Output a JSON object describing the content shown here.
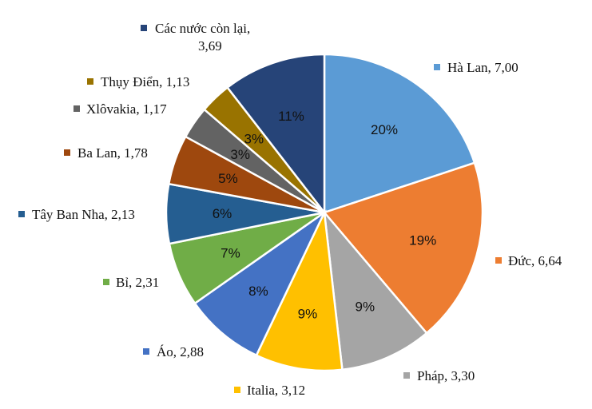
{
  "chart_data": {
    "type": "pie",
    "title": "",
    "slices": [
      {
        "name": "Hà Lan",
        "value_label": "7,00",
        "value": 7.0,
        "percent_label": "20%",
        "color": "#5B9BD5"
      },
      {
        "name": "Đức",
        "value_label": "6,64",
        "value": 6.64,
        "percent_label": "19%",
        "color": "#ED7D31"
      },
      {
        "name": "Pháp",
        "value_label": "3,30",
        "value": 3.3,
        "percent_label": "9%",
        "color": "#A5A5A5"
      },
      {
        "name": "Italia",
        "value_label": "3,12",
        "value": 3.12,
        "percent_label": "9%",
        "color": "#FFC000"
      },
      {
        "name": "Áo",
        "value_label": "2,88",
        "value": 2.88,
        "percent_label": "8%",
        "color": "#4472C4"
      },
      {
        "name": "Bỉ",
        "value_label": "2,31",
        "value": 2.31,
        "percent_label": "7%",
        "color": "#70AD47"
      },
      {
        "name": "Tây Ban Nha",
        "value_label": "2,13",
        "value": 2.13,
        "percent_label": "6%",
        "color": "#255E91"
      },
      {
        "name": "Ba Lan",
        "value_label": "1,78",
        "value": 1.78,
        "percent_label": "5%",
        "color": "#9E480E"
      },
      {
        "name": "Xlôvakia",
        "value_label": "1,17",
        "value": 1.17,
        "percent_label": "3%",
        "color": "#636363"
      },
      {
        "name": "Thụy Điển",
        "value_label": "1,13",
        "value": 1.13,
        "percent_label": "3%",
        "color": "#997300"
      },
      {
        "name": "Các nước còn lại",
        "value_label": "3,69",
        "value": 3.69,
        "percent_label": "11%",
        "color": "#264478"
      }
    ],
    "start": "12 o'clock",
    "direction": "clockwise",
    "legend": "outside labels with color markers"
  }
}
